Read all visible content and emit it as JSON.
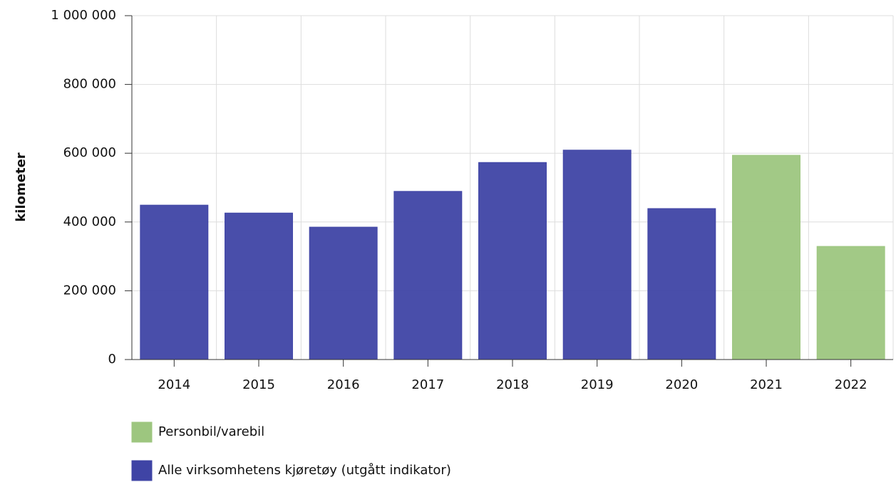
{
  "chart_data": {
    "type": "bar",
    "ylabel": "kilometer",
    "categories": [
      "2014",
      "2015",
      "2016",
      "2017",
      "2018",
      "2019",
      "2020",
      "2021",
      "2022"
    ],
    "series": [
      {
        "name": "Personbil/varebil",
        "color": "#9dc67f",
        "values": [
          null,
          null,
          null,
          null,
          null,
          null,
          null,
          594000,
          329000
        ]
      },
      {
        "name": "Alle virksomhetens kjøretøy (utgått indikator)",
        "color": "#3f44a5",
        "values": [
          449000,
          426000,
          385000,
          489000,
          573000,
          609000,
          439000,
          null,
          null
        ]
      }
    ],
    "ylim": [
      0,
      1000000
    ],
    "yticks": [
      0,
      {
        "value": 200000,
        "label": "200 000"
      },
      {
        "value": 400000,
        "label": "400 000"
      },
      {
        "value": 600000,
        "label": "600 000"
      },
      {
        "value": 800000,
        "label": "800 000"
      },
      {
        "value": 1000000,
        "label": "1 000 000"
      }
    ],
    "grid": true
  }
}
